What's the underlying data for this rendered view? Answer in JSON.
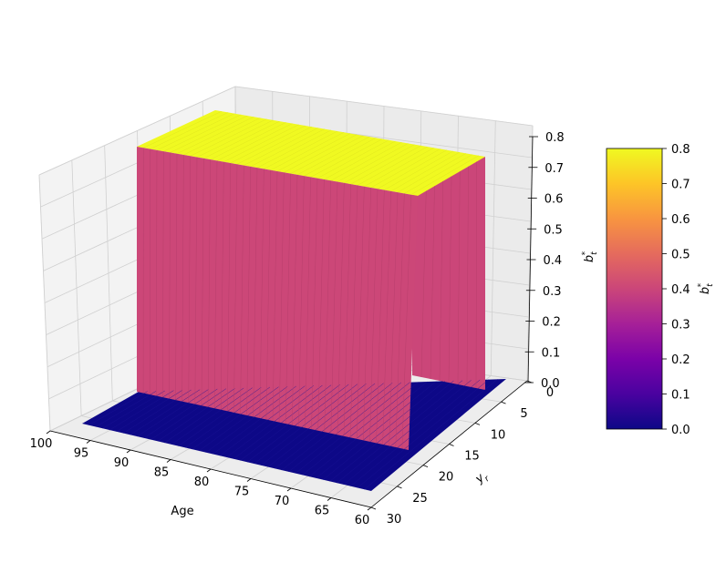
{
  "chart_data": {
    "type": "surface",
    "x_axis": {
      "label": "Age",
      "range": [
        60,
        100
      ],
      "ticks": [
        100,
        95,
        90,
        85,
        80,
        75,
        70,
        65,
        60
      ]
    },
    "y_axis": {
      "label": "y",
      "label_sub": "r",
      "range": [
        0,
        30
      ],
      "ticks": [
        0,
        5,
        10,
        15,
        20,
        25,
        30
      ]
    },
    "z_axis": {
      "label": "b",
      "label_sub": "t",
      "label_sup": "*",
      "range": [
        0,
        0.8
      ],
      "ticks": [
        "0.0",
        "0.1",
        "0.2",
        "0.3",
        "0.4",
        "0.5",
        "0.6",
        "0.7",
        "0.8"
      ]
    },
    "surface": {
      "description_values": {
        "plateau_value": 0.8,
        "floor_value": 0.0,
        "plateau_age_range": [
          65,
          100
        ],
        "plateau_yr_range": [
          0,
          22
        ]
      }
    },
    "colorbar": {
      "colormap": "plasma",
      "label": "b",
      "label_sub": "t",
      "label_sup": "*",
      "range": [
        0,
        0.8
      ],
      "ticks": [
        "0.0",
        "0.1",
        "0.2",
        "0.3",
        "0.4",
        "0.5",
        "0.6",
        "0.7",
        "0.8"
      ]
    },
    "grid": true
  }
}
